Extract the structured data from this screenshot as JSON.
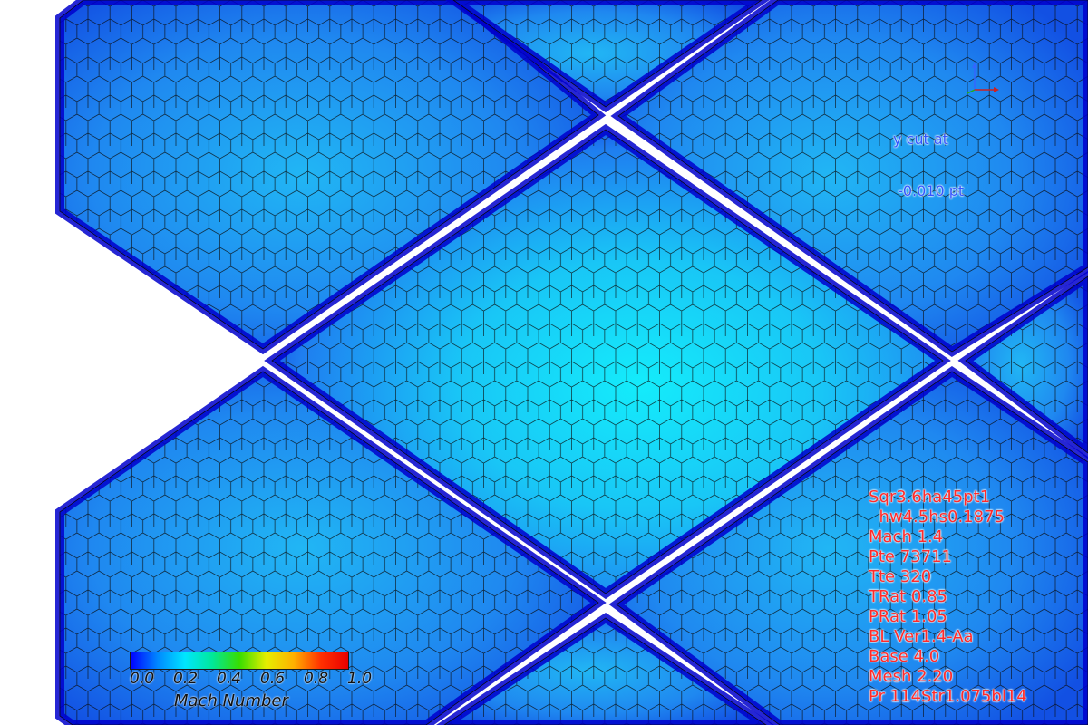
{
  "cut_label": {
    "line1": "y cut at",
    "line2": " -0.010 pt"
  },
  "info_block": [
    "Sqr3.6ha45pt1",
    "  hw4.5hs0.1875",
    "Mach 1.4",
    "Pte 73711",
    "Tte 320",
    "TRat 0.85",
    "PRat 1.05",
    "BL Ver1.4-Aa",
    "Base 4.0",
    "Mesh 2.20",
    "Pr 114Str1.075bl14"
  ],
  "legend": {
    "title": "Mach Number",
    "ticks": [
      "0.0",
      "0.2",
      "0.4",
      "0.6",
      "0.8",
      "1.0"
    ],
    "colors": [
      "#0000ff",
      "#0088ff",
      "#00e6ff",
      "#00e89a",
      "#38dd00",
      "#e6ee00",
      "#ffb000",
      "#ff3000",
      "#e80000"
    ]
  },
  "colors": {
    "edge": "#0000cc",
    "dark": "#1040e0",
    "mid": "#1f7ef0",
    "light": "#19c6f6",
    "peak": "#14ecfb",
    "cut_label": "#3355ff",
    "info_text": "#ff2a2a"
  }
}
